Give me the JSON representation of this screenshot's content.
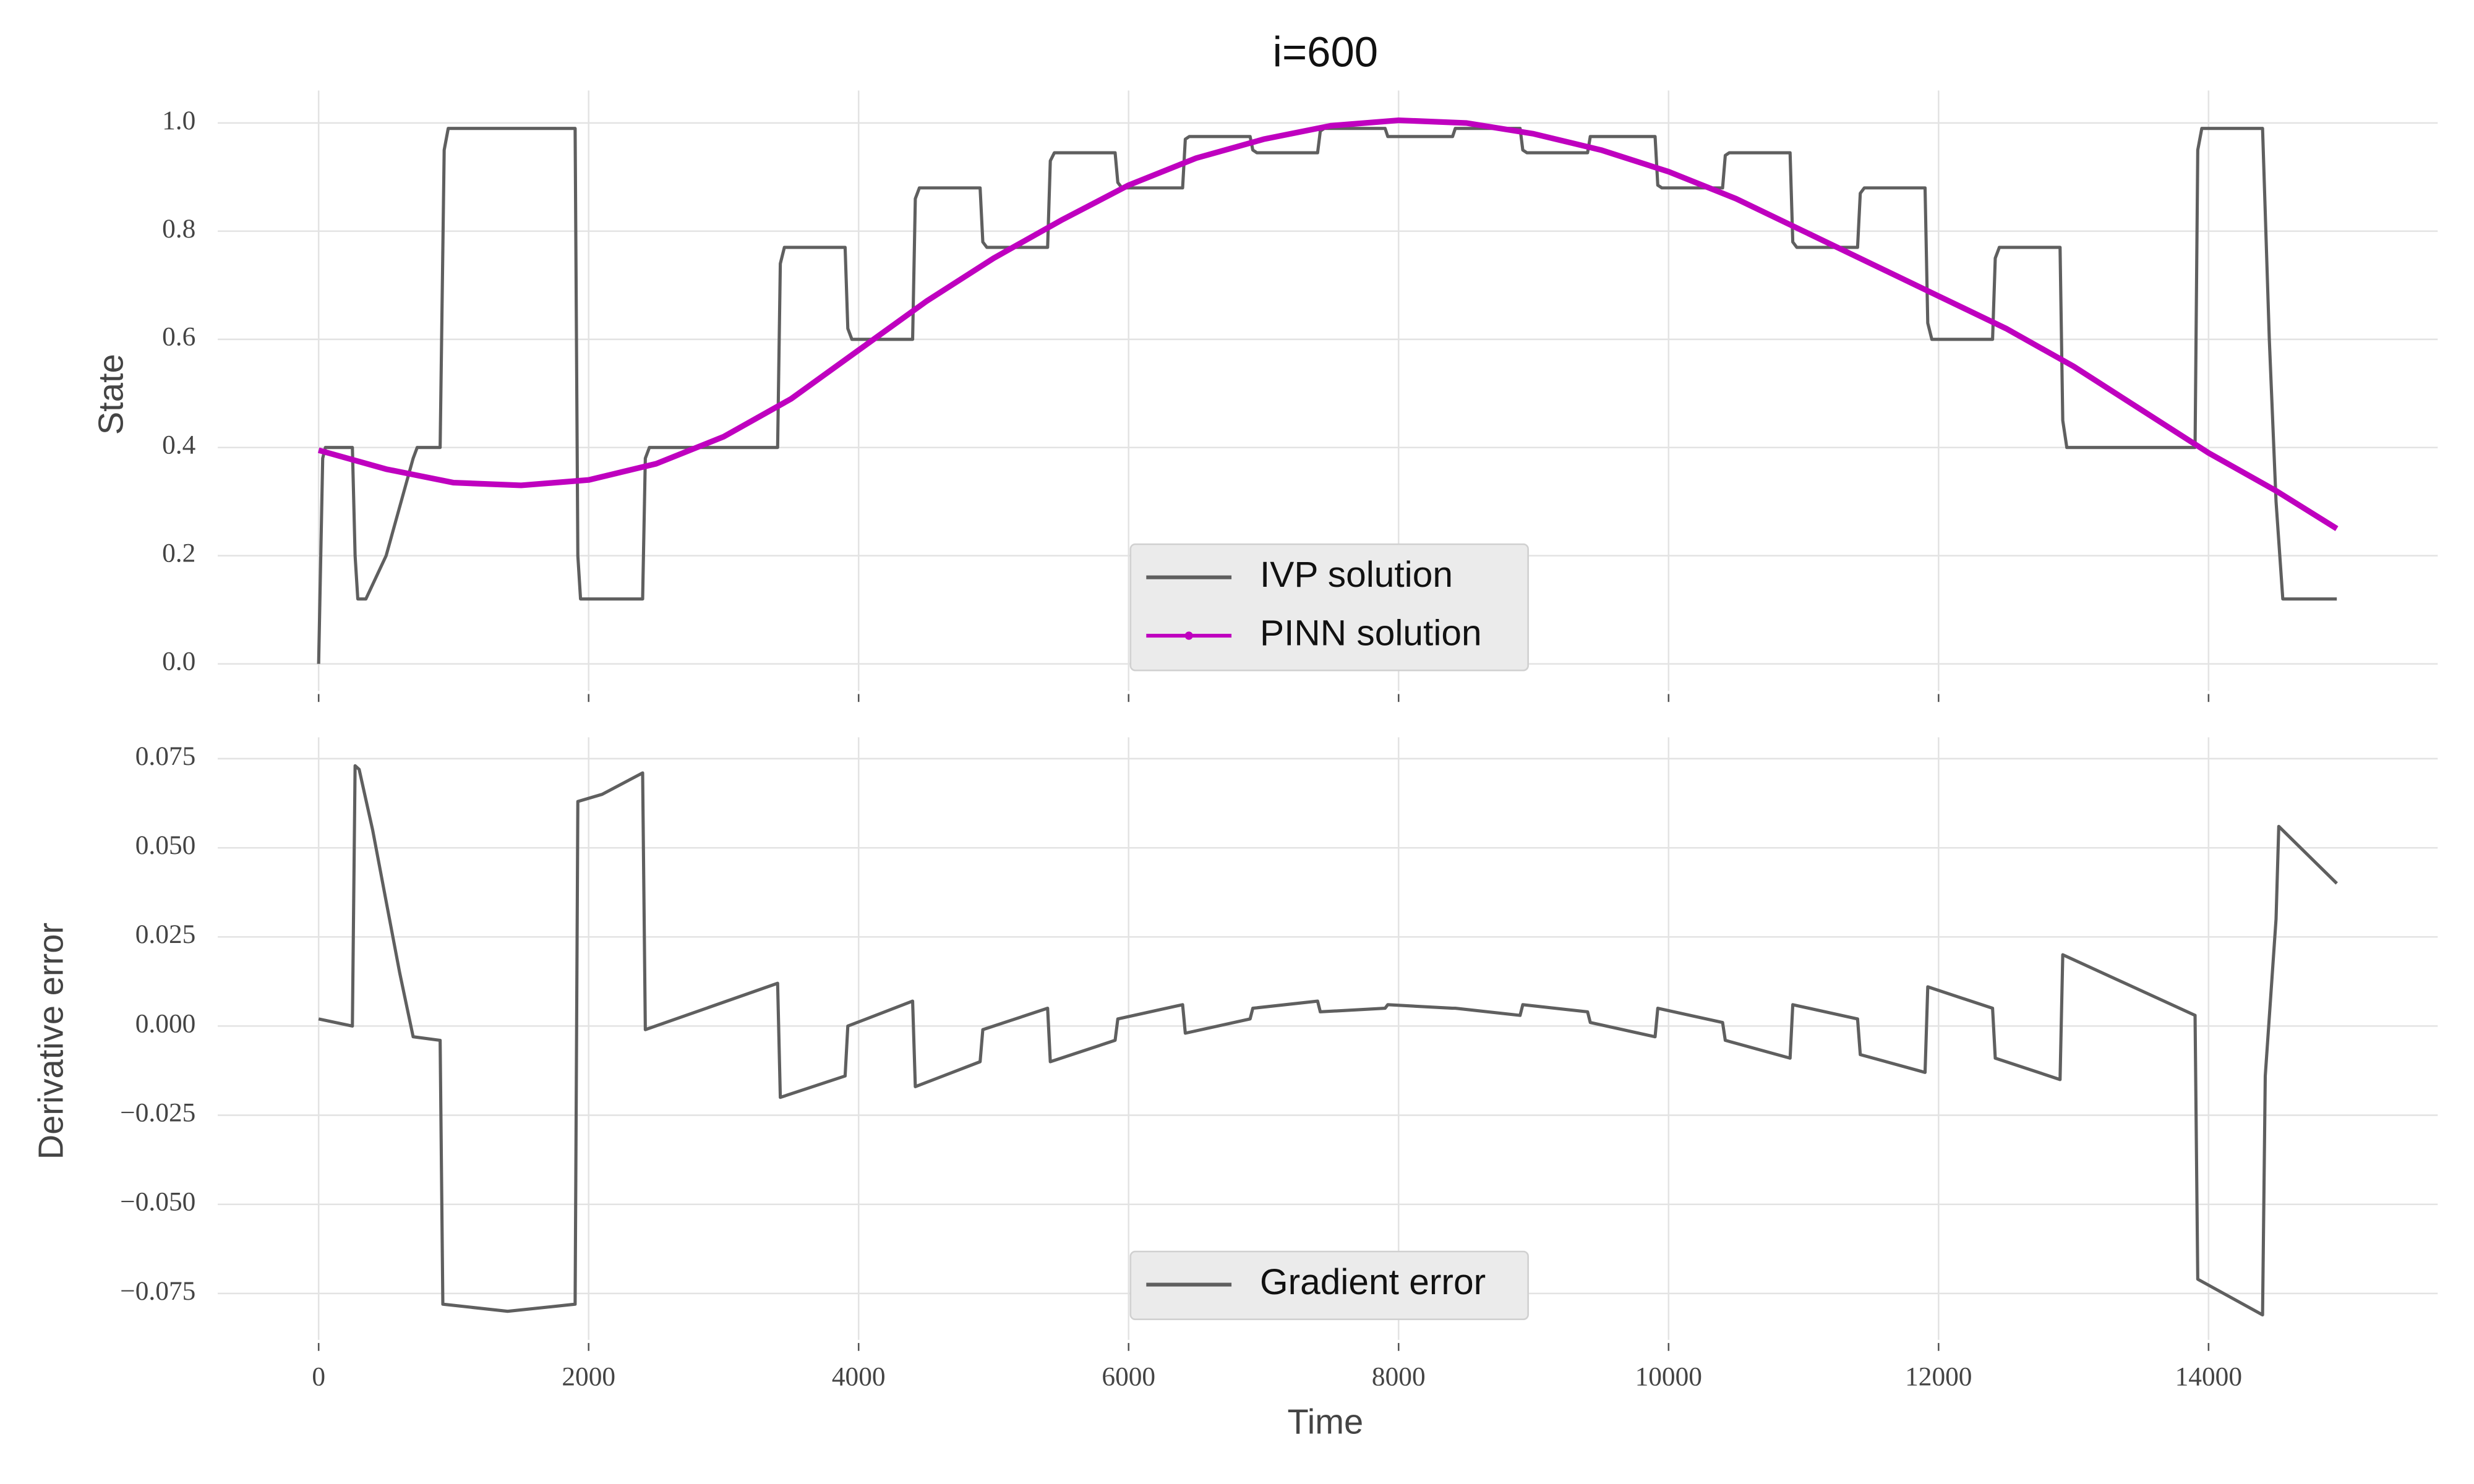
{
  "chart_data": [
    {
      "type": "line",
      "title": "i=600",
      "ylabel": "State",
      "legend": "lower center",
      "grid": true,
      "xlim": [
        -747.5,
        15697.5
      ],
      "ylim": [
        -0.05,
        1.06
      ],
      "yticks": [
        {
          "value": 0,
          "label": "0.0"
        },
        0.2,
        0.4,
        0.6,
        0.8,
        {
          "value": 1,
          "label": "1.0"
        }
      ],
      "series": [
        {
          "name": "IVP solution",
          "color": "#5f5f5f",
          "x": [
            0,
            30,
            50,
            250,
            270,
            290,
            350,
            500,
            700,
            730,
            900,
            930,
            960,
            1900,
            1920,
            1940,
            2400,
            2420,
            2450,
            3400,
            3420,
            3450,
            3900,
            3920,
            3950,
            4400,
            4420,
            4450,
            4900,
            4920,
            4950,
            5400,
            5420,
            5450,
            5900,
            5920,
            5950,
            6400,
            6420,
            6450,
            6900,
            6920,
            6950,
            7400,
            7420,
            7450,
            7900,
            7920,
            8400,
            8420,
            8900,
            8920,
            8950,
            9400,
            9420,
            9900,
            9920,
            9950,
            10400,
            10420,
            10450,
            10900,
            10920,
            10950,
            11400,
            11420,
            11450,
            11900,
            11920,
            11950,
            12400,
            12420,
            12450,
            12900,
            12920,
            12950,
            13900,
            13920,
            13950,
            14400,
            14450,
            14500,
            14550,
            14950
          ],
          "values": [
            0,
            0.38,
            0.4,
            0.4,
            0.2,
            0.12,
            0.12,
            0.2,
            0.38,
            0.4,
            0.4,
            0.95,
            0.99,
            0.99,
            0.2,
            0.12,
            0.12,
            0.38,
            0.4,
            0.4,
            0.74,
            0.77,
            0.77,
            0.62,
            0.6,
            0.6,
            0.86,
            0.88,
            0.88,
            0.78,
            0.77,
            0.77,
            0.93,
            0.945,
            0.945,
            0.89,
            0.88,
            0.88,
            0.97,
            0.975,
            0.975,
            0.95,
            0.945,
            0.945,
            0.985,
            0.99,
            0.99,
            0.975,
            0.975,
            0.99,
            0.99,
            0.95,
            0.945,
            0.945,
            0.975,
            0.975,
            0.885,
            0.88,
            0.88,
            0.94,
            0.945,
            0.945,
            0.78,
            0.77,
            0.77,
            0.87,
            0.88,
            0.88,
            0.63,
            0.6,
            0.6,
            0.75,
            0.77,
            0.77,
            0.45,
            0.4,
            0.4,
            0.95,
            0.99,
            0.99,
            0.6,
            0.3,
            0.12,
            0.12
          ]
        },
        {
          "name": "PINN solution",
          "color": "#bf00bf",
          "x": [
            0,
            500,
            1000,
            1500,
            2000,
            2500,
            3000,
            3500,
            4000,
            4500,
            5000,
            5500,
            6000,
            6500,
            7000,
            7500,
            8000,
            8500,
            9000,
            9500,
            10000,
            10500,
            11000,
            11500,
            12000,
            12500,
            13000,
            13500,
            14000,
            14500,
            14950
          ],
          "values": [
            0.395,
            0.36,
            0.335,
            0.33,
            0.34,
            0.37,
            0.42,
            0.49,
            0.58,
            0.67,
            0.75,
            0.82,
            0.885,
            0.935,
            0.97,
            0.995,
            1.005,
            1.0,
            0.98,
            0.95,
            0.91,
            0.86,
            0.8,
            0.74,
            0.68,
            0.62,
            0.55,
            0.47,
            0.39,
            0.32,
            0.25
          ]
        }
      ]
    },
    {
      "type": "line",
      "xlabel": "Time",
      "ylabel": "Derivative error",
      "legend": "lower center",
      "grid": true,
      "xlim": [
        -747.5,
        15697.5
      ],
      "ylim": [
        -0.088,
        0.081
      ],
      "xticks": [
        0,
        2000,
        4000,
        6000,
        8000,
        10000,
        12000,
        14000
      ],
      "yticks": [
        {
          "value": -0.075,
          "label": "−0.075"
        },
        {
          "value": -0.05,
          "label": "−0.050"
        },
        {
          "value": -0.025,
          "label": "−0.025"
        },
        {
          "value": 0,
          "label": "0.000"
        },
        0.025,
        {
          "value": 0.05,
          "label": "0.050"
        },
        0.075
      ],
      "series": [
        {
          "name": "Gradient error",
          "color": "#5f5f5f",
          "x": [
            0,
            250,
            270,
            300,
            400,
            500,
            600,
            700,
            900,
            920,
            1400,
            1900,
            1920,
            2100,
            2400,
            2420,
            3400,
            3420,
            3900,
            3920,
            4400,
            4420,
            4900,
            4920,
            5400,
            5420,
            5900,
            5920,
            6400,
            6420,
            6900,
            6920,
            7400,
            7420,
            7900,
            7920,
            8400,
            8420,
            8900,
            8920,
            9400,
            9420,
            9900,
            9920,
            10400,
            10420,
            10900,
            10920,
            11400,
            11420,
            11900,
            11920,
            12400,
            12420,
            12900,
            12920,
            13900,
            13920,
            14400,
            14420,
            14500,
            14520,
            14950
          ],
          "values": [
            0.002,
            0,
            0.073,
            0.072,
            0.055,
            0.035,
            0.015,
            -0.003,
            -0.004,
            -0.078,
            -0.08,
            -0.078,
            0.063,
            0.065,
            0.071,
            -0.001,
            0.012,
            -0.02,
            -0.014,
            0,
            0.007,
            -0.017,
            -0.01,
            -0.001,
            0.005,
            -0.01,
            -0.004,
            0.002,
            0.006,
            -0.002,
            0.002,
            0.005,
            0.007,
            0.004,
            0.005,
            0.006,
            0.005,
            0.005,
            0.003,
            0.006,
            0.004,
            0.001,
            -0.003,
            0.005,
            0.001,
            -0.004,
            -0.009,
            0.006,
            0.002,
            -0.008,
            -0.013,
            0.011,
            0.005,
            -0.009,
            -0.015,
            0.02,
            0.003,
            -0.071,
            -0.081,
            -0.014,
            0.03,
            0.056,
            0.04
          ]
        }
      ]
    }
  ]
}
